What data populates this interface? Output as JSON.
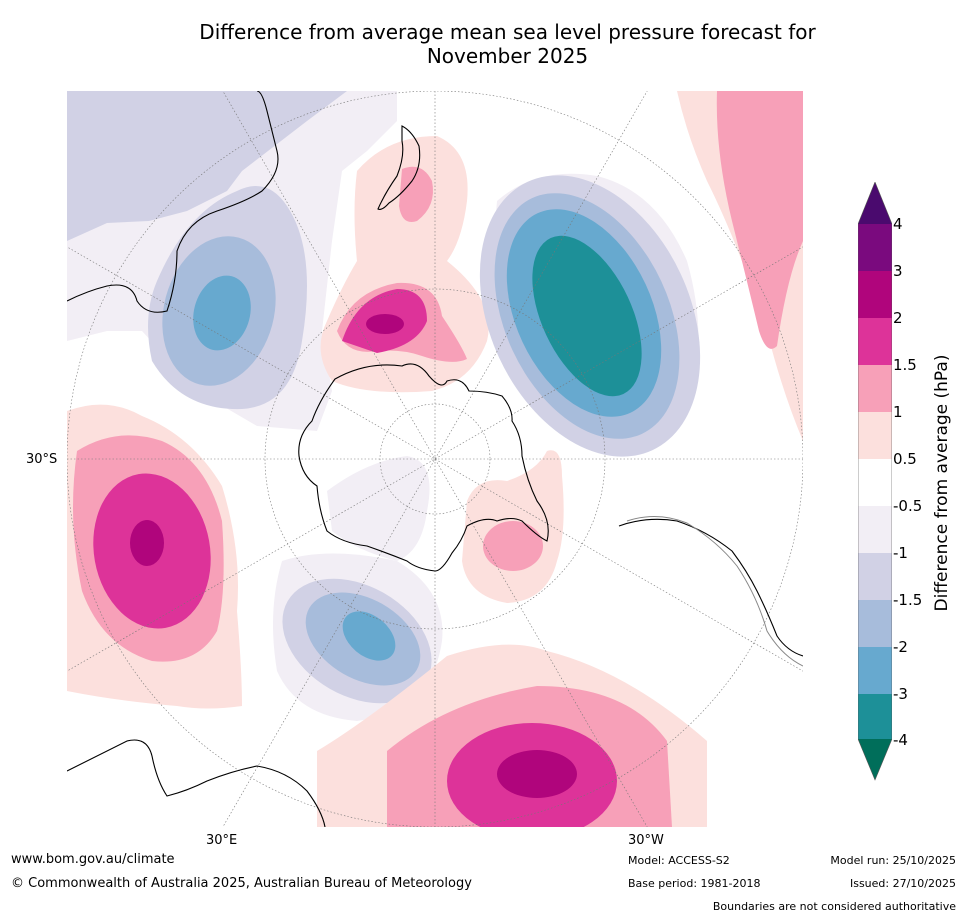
{
  "title_line1": "Difference from average mean sea level pressure forecast for",
  "title_line2": "November 2025",
  "map": {
    "latitude_label": "30°S",
    "longitude_labels": [
      "30°E",
      "30°W"
    ]
  },
  "colorbar": {
    "title": "Difference from average (hPa)",
    "ticks": [
      "4",
      "3",
      "2",
      "1.5",
      "1",
      "0.5",
      "-0.5",
      "-1",
      "-1.5",
      "-2",
      "-3",
      "-4"
    ],
    "colors": {
      "above_4": "#4a0a6e",
      "3_to_4": "#7a0a7e",
      "2_to_3": "#b0057c",
      "1_5_to_2": "#dd3399",
      "1_to_1_5": "#f7a0b8",
      "0_5_to_1": "#fce0dd",
      "neutral": "#ffffff",
      "m1_to_m0_5": "#f2eef5",
      "m1_5_to_m1": "#d1d1e5",
      "m2_to_m1_5": "#a7bcdb",
      "m3_to_m2": "#67a9cf",
      "m4_to_m3": "#1d9098",
      "below_m4": "#006e5a"
    }
  },
  "footer": {
    "website": "www.bom.gov.au/climate",
    "copyright": "© Commonwealth of Australia 2025, Australian Bureau of Meteorology",
    "model": "Model: ACCESS-S2",
    "base_period": "Base period: 1981-2018",
    "model_run": "Model run: 25/10/2025",
    "issued": "Issued: 27/10/2025",
    "disclaimer": "Boundaries are not considered authoritative"
  }
}
